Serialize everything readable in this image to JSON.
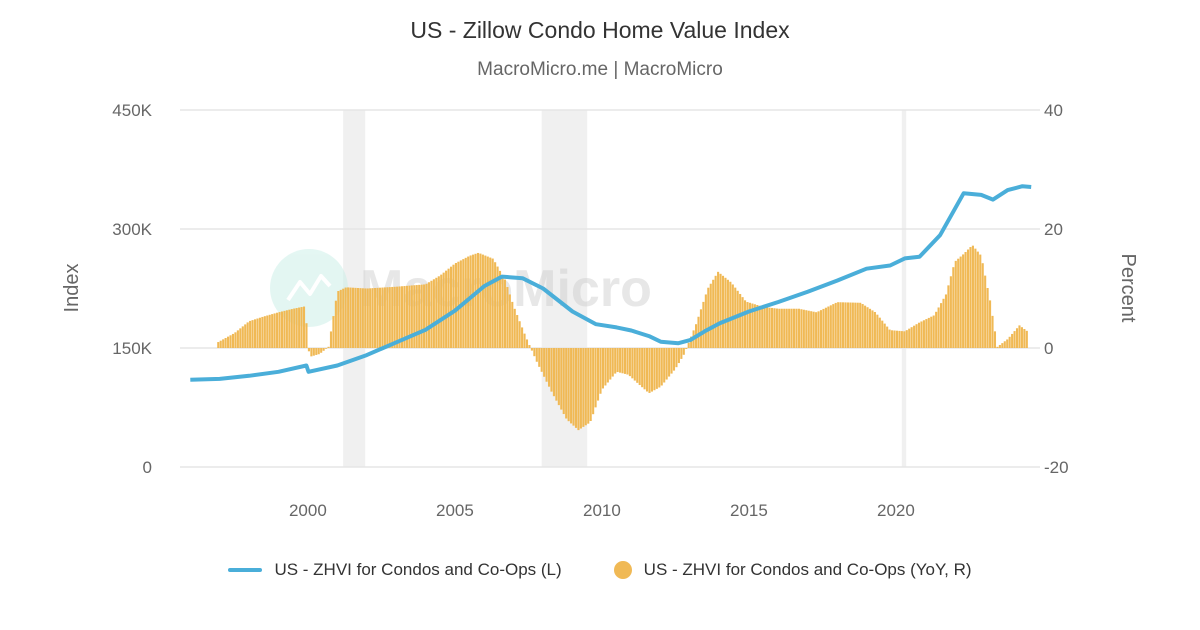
{
  "chart_data": {
    "type": "bar+line",
    "title": "US - Zillow Condo Home Value Index",
    "subtitle": "MacroMicro.me | MacroMicro",
    "watermark": "MacroMicro",
    "xlabel": "",
    "ylabel_left": "Index",
    "ylabel_right": "Percent",
    "xlim": [
      1995.65,
      2024.9
    ],
    "ylim_left": [
      0,
      450000
    ],
    "ylim_right": [
      -20,
      40
    ],
    "x_ticks": [
      "2000",
      "2005",
      "2010",
      "2015",
      "2020"
    ],
    "y_ticks_left": [
      "450K",
      "300K",
      "150K",
      "0"
    ],
    "y_ticks_right": [
      "40",
      "20",
      "0",
      "-20"
    ],
    "recessions": [
      [
        2001.2,
        2001.95
      ],
      [
        2007.95,
        2009.5
      ],
      [
        2020.2,
        2020.35
      ]
    ],
    "colors": {
      "line": "#4aaed9",
      "bar": "#f0b955",
      "recession": "#f0f0f0",
      "grid": "#e6e6e6"
    },
    "series": [
      {
        "name": "US - ZHVI for Condos and Co-Ops (L)",
        "type": "line",
        "x": [
          1996.0,
          1997.0,
          1998.0,
          1999.0,
          1999.95,
          2000.02,
          2001.0,
          2002.0,
          2003.0,
          2004.0,
          2005.0,
          2006.0,
          2006.6,
          2007.3,
          2008.0,
          2009.0,
          2009.8,
          2010.5,
          2011.0,
          2011.6,
          2012.0,
          2012.6,
          2013.0,
          2013.5,
          2014.0,
          2015.0,
          2016.0,
          2017.0,
          2018.0,
          2019.0,
          2019.8,
          2020.3,
          2020.8,
          2021.5,
          2022.0,
          2022.3,
          2022.9,
          2023.3,
          2023.8,
          2024.3,
          2024.6
        ],
        "values": [
          110000,
          111000,
          115000,
          120000,
          128000,
          120000,
          128000,
          141000,
          157000,
          173000,
          197000,
          228000,
          240000,
          238000,
          225000,
          196000,
          180000,
          176000,
          172000,
          165000,
          158000,
          156000,
          160000,
          171000,
          181000,
          196000,
          208000,
          221000,
          235000,
          250000,
          254000,
          263000,
          265000,
          292000,
          325000,
          345000,
          343000,
          337000,
          349000,
          354000,
          353000
        ]
      },
      {
        "name": "US - ZHVI for Condos and Co-Ops (YoY, R)",
        "type": "bar",
        "x": [
          1996.95,
          1997.5,
          1998.0,
          1998.5,
          1999.0,
          1999.5,
          1999.9,
          2000.05,
          2000.4,
          2000.7,
          2001.0,
          2001.3,
          2002.0,
          2003.0,
          2004.0,
          2004.5,
          2005.0,
          2005.5,
          2005.8,
          2006.3,
          2006.7,
          2007.0,
          2007.4,
          2007.8,
          2008.3,
          2008.8,
          2009.2,
          2009.6,
          2010.0,
          2010.5,
          2010.9,
          2011.3,
          2011.6,
          2012.0,
          2012.5,
          2012.8,
          2013.2,
          2013.6,
          2013.95,
          2014.4,
          2014.9,
          2015.5,
          2016.0,
          2016.7,
          2017.3,
          2018.0,
          2018.8,
          2019.3,
          2019.8,
          2020.3,
          2020.8,
          2021.3,
          2021.7,
          2022.0,
          2022.3,
          2022.6,
          2022.9,
          2023.2,
          2023.45,
          2023.8,
          2024.2,
          2024.5
        ],
        "values": [
          1.0,
          2.5,
          4.5,
          5.3,
          6.0,
          6.6,
          7.0,
          -1.5,
          -1.0,
          0.2,
          9.5,
          10.2,
          10.0,
          10.3,
          10.7,
          12.2,
          14.2,
          15.5,
          16.0,
          15.0,
          11.5,
          7.0,
          2.0,
          -2.5,
          -7.5,
          -12.0,
          -13.8,
          -12.5,
          -7.0,
          -4.0,
          -4.5,
          -6.3,
          -7.6,
          -6.5,
          -3.5,
          -1.0,
          4.0,
          10.0,
          12.8,
          11.0,
          7.8,
          6.9,
          6.6,
          6.6,
          6.0,
          7.7,
          7.6,
          6.0,
          3.0,
          2.8,
          4.3,
          5.5,
          9.0,
          14.5,
          15.8,
          17.3,
          15.5,
          8.0,
          0.2,
          1.5,
          3.8,
          2.7
        ]
      }
    ]
  }
}
